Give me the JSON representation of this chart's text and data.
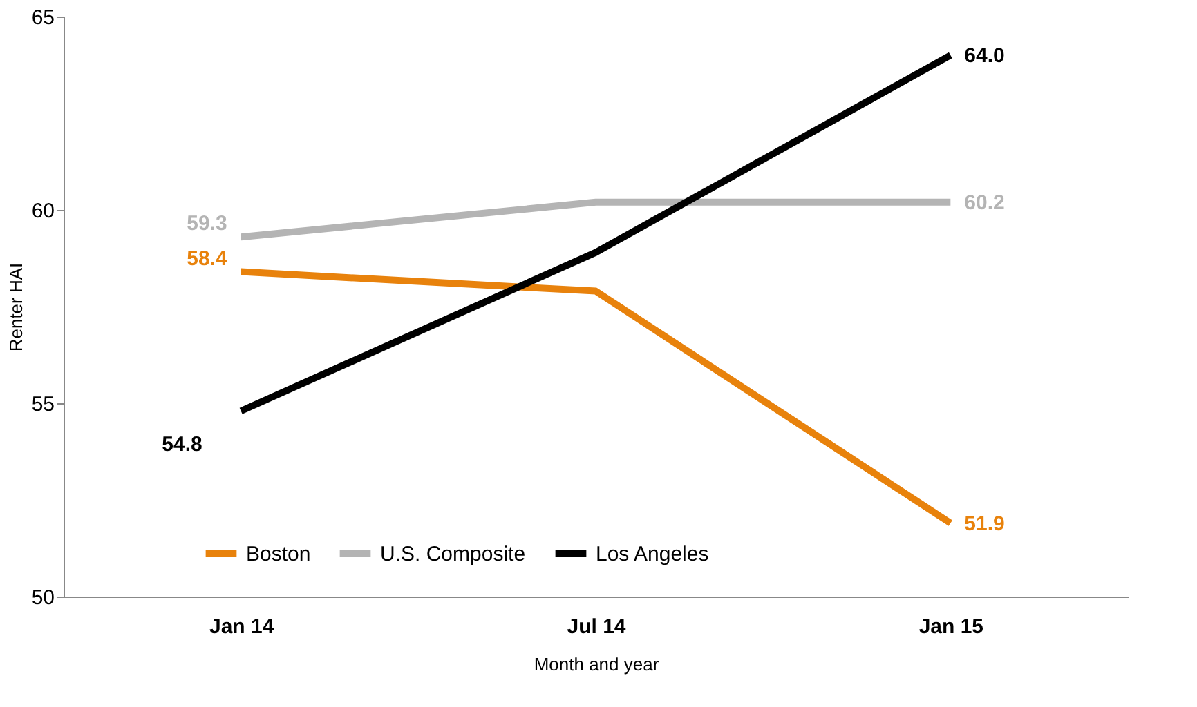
{
  "chart_data": {
    "type": "line",
    "xlabel": "Month and year",
    "ylabel": "Renter HAI",
    "categories": [
      "Jan 14",
      "Jul 14",
      "Jan 15"
    ],
    "series": [
      {
        "name": "Boston",
        "color": "#e8820c",
        "values": [
          58.4,
          57.9,
          51.9
        ],
        "value_labels": [
          "58.4",
          null,
          "51.9"
        ]
      },
      {
        "name": "U.S. Composite",
        "color": "#b4b4b4",
        "values": [
          59.3,
          60.2,
          60.2
        ],
        "value_labels": [
          "59.3",
          null,
          "60.2"
        ]
      },
      {
        "name": "Los Angeles",
        "color": "#000000",
        "values": [
          54.8,
          58.9,
          64.0
        ],
        "value_labels": [
          "54.8",
          null,
          "64.0"
        ]
      }
    ],
    "ylim": [
      50,
      65
    ],
    "yticks": [
      50,
      55,
      60,
      65
    ],
    "grid": false,
    "legend": "bottom",
    "marker": "none",
    "line_style": "solid"
  }
}
